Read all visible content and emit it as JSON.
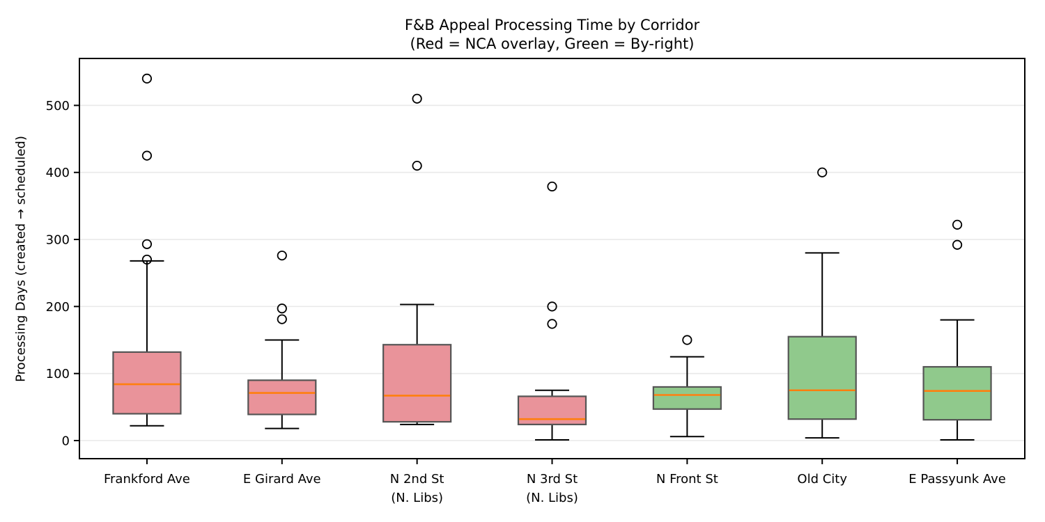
{
  "chart_data": {
    "type": "boxplot",
    "title": "F&B Appeal Processing Time by Corridor",
    "subtitle": "(Red = NCA overlay, Green = By-right)",
    "ylabel": "Processing Days (created → scheduled)",
    "xlabel": "",
    "yticks": [
      0,
      100,
      200,
      300,
      400,
      500
    ],
    "ylim": [
      -27,
      570
    ],
    "grid": "horizontal",
    "legend_note": {
      "red": "NCA overlay",
      "green": "By-right"
    },
    "colors": {
      "nca_overlay_fill": "#e9939a",
      "by_right_fill": "#90c98c",
      "box_edge": "#555555",
      "median": "#ff7f0e",
      "whisker": "#000000",
      "outlier_edge": "#000000",
      "grid": "#e9e9e9",
      "frame": "#000000",
      "background": "#ffffff"
    },
    "boxes": [
      {
        "label": "Frankford Ave",
        "label_line2": "",
        "group": "NCA overlay",
        "color": "red",
        "whisker_low": 22,
        "q1": 40,
        "median": 84,
        "q3": 132,
        "whisker_high": 268,
        "outliers": [
          270,
          293,
          425,
          540
        ]
      },
      {
        "label": "E Girard Ave",
        "label_line2": "",
        "group": "NCA overlay",
        "color": "red",
        "whisker_low": 18,
        "q1": 39,
        "median": 71,
        "q3": 90,
        "whisker_high": 150,
        "outliers": [
          181,
          197,
          276
        ]
      },
      {
        "label": "N 2nd St",
        "label_line2": "(N. Libs)",
        "group": "NCA overlay",
        "color": "red",
        "whisker_low": 24,
        "q1": 28,
        "median": 67,
        "q3": 143,
        "whisker_high": 203,
        "outliers": [
          410,
          510
        ]
      },
      {
        "label": "N 3rd St",
        "label_line2": "(N. Libs)",
        "group": "NCA overlay",
        "color": "red",
        "whisker_low": 1,
        "q1": 24,
        "median": 32,
        "q3": 66,
        "whisker_high": 75,
        "outliers": [
          174,
          200,
          379
        ]
      },
      {
        "label": "N Front St",
        "label_line2": "",
        "group": "By-right",
        "color": "green",
        "whisker_low": 6,
        "q1": 47,
        "median": 68,
        "q3": 80,
        "whisker_high": 125,
        "outliers": [
          150
        ]
      },
      {
        "label": "Old City",
        "label_line2": "",
        "group": "By-right",
        "color": "green",
        "whisker_low": 4,
        "q1": 32,
        "median": 75,
        "q3": 155,
        "whisker_high": 280,
        "outliers": [
          400
        ]
      },
      {
        "label": "E Passyunk Ave",
        "label_line2": "",
        "group": "By-right",
        "color": "green",
        "whisker_low": 1,
        "q1": 31,
        "median": 74,
        "q3": 110,
        "whisker_high": 180,
        "outliers": [
          292,
          322
        ]
      }
    ]
  }
}
